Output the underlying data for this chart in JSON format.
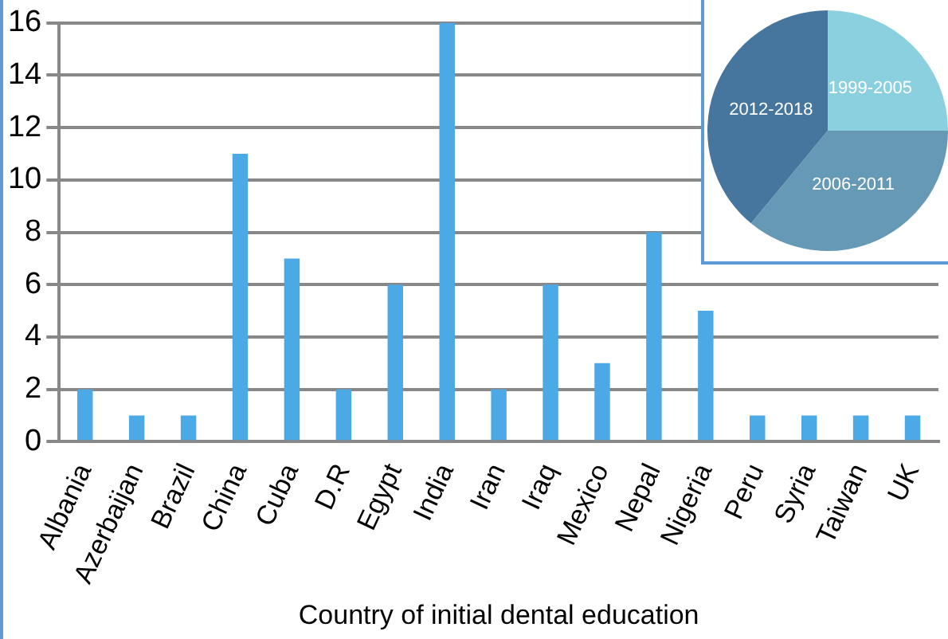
{
  "chart_data": [
    {
      "type": "bar",
      "xlabel": "Country of initial dental education",
      "categories": [
        "Albania",
        "Azerbaijan",
        "Brazil",
        "China",
        "Cuba",
        "D.R",
        "Egypt",
        "India",
        "Iran",
        "Iraq",
        "Mexico",
        "Nepal",
        "Nigeria",
        "Peru",
        "Syria",
        "Taiwan",
        "UK"
      ],
      "values": [
        2,
        1,
        1,
        11,
        7,
        2,
        6,
        16,
        2,
        6,
        3,
        8,
        5,
        1,
        1,
        1,
        1
      ],
      "color": "#4ba9e6",
      "ylim": [
        0,
        16
      ],
      "yticks": [
        0,
        2,
        4,
        6,
        8,
        10,
        12,
        14,
        16
      ],
      "grid": "y"
    },
    {
      "type": "pie",
      "categories": [
        "1999-2005",
        "2006-2011",
        "2012-2018"
      ],
      "values": [
        25,
        36,
        39
      ],
      "colors": [
        "#8ad0de",
        "#6699b5",
        "#46769e"
      ]
    }
  ]
}
